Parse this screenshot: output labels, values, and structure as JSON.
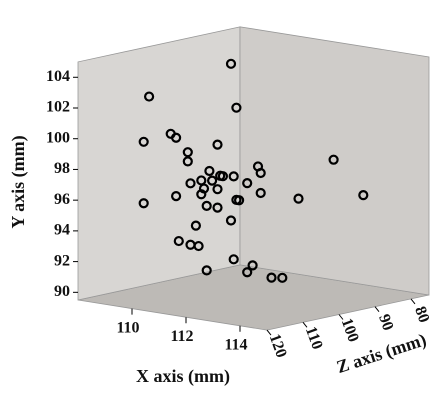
{
  "chart_data": {
    "type": "scatter3d",
    "x_label": "X axis (mm)",
    "y_label": "Y axis (mm)",
    "z_label": "Z axis (mm)",
    "x": [
      111.0,
      109.3,
      111.2,
      110.1,
      110.3,
      109.1,
      110.5,
      109.4,
      109.4,
      112.0,
      112.1,
      112.8,
      110.2,
      110.6,
      110.7,
      111.1,
      109.5,
      109.9,
      110.3,
      111.6,
      110.0,
      110.5,
      109.9,
      113.9,
      110.3,
      111.3,
      111.2,
      112.1,
      111.5,
      109.1,
      110.1,
      110.5,
      111.0,
      109.7,
      110.4,
      109.5,
      109.8,
      111.1,
      111.8,
      111.6,
      110.1,
      112.5,
      112.9
    ],
    "y": [
      104.7,
      102.6,
      101.9,
      100.4,
      100.2,
      99.6,
      99.3,
      98.5,
      97.9,
      98.3,
      97.9,
      98.2,
      97.5,
      97.3,
      97.3,
      97.4,
      96.5,
      96.8,
      96.9,
      97.1,
      96.3,
      96.4,
      95.9,
      96.2,
      96.4,
      95.9,
      95.9,
      96.6,
      95.3,
      95.6,
      95.2,
      95.2,
      94.5,
      93.8,
      93.5,
      92.5,
      92.5,
      92.0,
      91.8,
      91.3,
      91.0,
      91.2,
      91.3
    ],
    "z": [
      100,
      110,
      100,
      110,
      110,
      110,
      100,
      100,
      100,
      100,
      100,
      85,
      100,
      100,
      100,
      100,
      100,
      100,
      100,
      100,
      100,
      100,
      100,
      85,
      110,
      100,
      100,
      100,
      85,
      110,
      100,
      100,
      100,
      100,
      110,
      100,
      100,
      100,
      100,
      100,
      100,
      100,
      100
    ],
    "color": "#000000",
    "xlim": [
      108,
      115
    ],
    "ylim": [
      89.5,
      105
    ],
    "zlim": [
      75,
      120
    ],
    "xticks": [
      110,
      112,
      114
    ],
    "yticks": [
      90,
      92,
      94,
      96,
      98,
      100,
      102,
      104
    ],
    "zticks": [
      120,
      110,
      100,
      90,
      80
    ]
  }
}
